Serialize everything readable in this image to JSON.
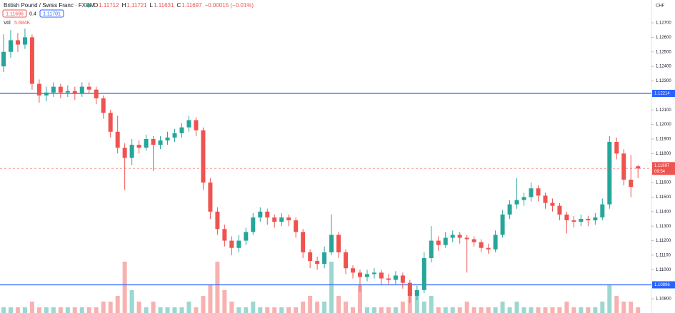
{
  "chart_data": {
    "type": "candlestick",
    "title": "British Pound / Swiss Franc · FXCM",
    "ohlc_labels": [
      "O",
      "H",
      "L",
      "C"
    ],
    "change": "−0.00015 (−0.01%)",
    "bid": "1.11696",
    "spread": "0.4",
    "ask": "1.11701",
    "volume_label": "Vol",
    "volume_value": "5.684K",
    "currency": "CHF",
    "countdown": "09:54",
    "up_color": "#26a69a",
    "down_color": "#ef5350",
    "ylim": [
      1.10702,
      1.12857
    ],
    "yticks": [
      {
        "value": 1.127,
        "label": "1.12700"
      },
      {
        "value": 1.126,
        "label": "1.12600"
      },
      {
        "value": 1.125,
        "label": "1.12500"
      },
      {
        "value": 1.124,
        "label": "1.12400"
      },
      {
        "value": 1.123,
        "label": "1.12300"
      },
      {
        "value": 1.121,
        "label": "1.12100"
      },
      {
        "value": 1.12,
        "label": "1.12000"
      },
      {
        "value": 1.119,
        "label": "1.11900"
      },
      {
        "value": 1.118,
        "label": "1.11800"
      },
      {
        "value": 1.116,
        "label": "1.11600"
      },
      {
        "value": 1.115,
        "label": "1.11500"
      },
      {
        "value": 1.114,
        "label": "1.11400"
      },
      {
        "value": 1.113,
        "label": "1.11300"
      },
      {
        "value": 1.112,
        "label": "1.11200"
      },
      {
        "value": 1.111,
        "label": "1.11100"
      },
      {
        "value": 1.11,
        "label": "1.11000"
      },
      {
        "value": 1.108,
        "label": "1.10800"
      }
    ],
    "grid": false,
    "hlines": [
      {
        "value": 1.12214,
        "label": "1.12214",
        "color": "#2962ff"
      },
      {
        "value": 1.10896,
        "label": "1.10896",
        "color": "#2962ff"
      }
    ],
    "candles": [
      [
        1.124,
        1.1262,
        1.1236,
        1.125
      ],
      [
        1.125,
        1.1265,
        1.1246,
        1.1258
      ],
      [
        1.1258,
        1.1263,
        1.125,
        1.1255
      ],
      [
        1.1255,
        1.1266,
        1.1252,
        1.126
      ],
      [
        1.126,
        1.1262,
        1.1224,
        1.1228
      ],
      [
        1.1228,
        1.1231,
        1.1215,
        1.122
      ],
      [
        1.122,
        1.1226,
        1.1216,
        1.1222
      ],
      [
        1.1222,
        1.1229,
        1.1219,
        1.1226
      ],
      [
        1.1226,
        1.1228,
        1.1218,
        1.1222
      ],
      [
        1.1222,
        1.1227,
        1.1219,
        1.1223
      ],
      [
        1.1223,
        1.1226,
        1.1217,
        1.1221
      ],
      [
        1.1221,
        1.1229,
        1.1219,
        1.1226
      ],
      [
        1.1226,
        1.1229,
        1.1221,
        1.1224
      ],
      [
        1.1224,
        1.1226,
        1.1214,
        1.1218
      ],
      [
        1.1218,
        1.122,
        1.1204,
        1.1208
      ],
      [
        1.1208,
        1.121,
        1.1191,
        1.1195
      ],
      [
        1.1195,
        1.1206,
        1.118,
        1.1184
      ],
      [
        1.1184,
        1.1187,
        1.1155,
        1.1177
      ],
      [
        1.1177,
        1.119,
        1.1172,
        1.1186
      ],
      [
        1.1186,
        1.1189,
        1.118,
        1.1184
      ],
      [
        1.1184,
        1.1193,
        1.1182,
        1.119
      ],
      [
        1.119,
        1.1192,
        1.1168,
        1.1186
      ],
      [
        1.1186,
        1.1192,
        1.1183,
        1.1189
      ],
      [
        1.1189,
        1.1195,
        1.1186,
        1.1191
      ],
      [
        1.1191,
        1.1197,
        1.1188,
        1.1194
      ],
      [
        1.1194,
        1.1201,
        1.1191,
        1.1198
      ],
      [
        1.1198,
        1.1206,
        1.1195,
        1.1203
      ],
      [
        1.1203,
        1.1205,
        1.1192,
        1.1196
      ],
      [
        1.1196,
        1.1198,
        1.1155,
        1.116
      ],
      [
        1.116,
        1.1163,
        1.1135,
        1.114
      ],
      [
        1.114,
        1.1143,
        1.1124,
        1.1128
      ],
      [
        1.1128,
        1.1131,
        1.1116,
        1.112
      ],
      [
        1.112,
        1.1123,
        1.111,
        1.1115
      ],
      [
        1.1115,
        1.1124,
        1.1112,
        1.112
      ],
      [
        1.112,
        1.1129,
        1.1117,
        1.1126
      ],
      [
        1.1126,
        1.1139,
        1.1124,
        1.1136
      ],
      [
        1.1136,
        1.1143,
        1.1133,
        1.114
      ],
      [
        1.114,
        1.1142,
        1.1131,
        1.1136
      ],
      [
        1.1136,
        1.1138,
        1.1129,
        1.1133
      ],
      [
        1.1133,
        1.1139,
        1.113,
        1.1136
      ],
      [
        1.1136,
        1.1138,
        1.113,
        1.1134
      ],
      [
        1.1134,
        1.1136,
        1.1122,
        1.1126
      ],
      [
        1.1126,
        1.1128,
        1.1108,
        1.1112
      ],
      [
        1.1112,
        1.1114,
        1.1101,
        1.1106
      ],
      [
        1.1106,
        1.1109,
        1.11,
        1.1104
      ],
      [
        1.1104,
        1.1116,
        1.1101,
        1.1112
      ],
      [
        1.1112,
        1.1138,
        1.111,
        1.1124
      ],
      [
        1.1124,
        1.1126,
        1.1108,
        1.1112
      ],
      [
        1.1112,
        1.1114,
        1.1097,
        1.1101
      ],
      [
        1.1101,
        1.1103,
        1.1094,
        1.1098
      ],
      [
        1.1098,
        1.11,
        1.1085,
        1.1095
      ],
      [
        1.1095,
        1.11,
        1.1092,
        1.1097
      ],
      [
        1.1097,
        1.1101,
        1.1094,
        1.1098
      ],
      [
        1.1098,
        1.11,
        1.109,
        1.1094
      ],
      [
        1.1094,
        1.1097,
        1.109,
        1.1093
      ],
      [
        1.1093,
        1.1099,
        1.109,
        1.1096
      ],
      [
        1.1096,
        1.1098,
        1.1087,
        1.1091
      ],
      [
        1.1091,
        1.1093,
        1.1077,
        1.1082
      ],
      [
        1.1082,
        1.1089,
        1.1079,
        1.1086
      ],
      [
        1.1086,
        1.1112,
        1.1084,
        1.1108
      ],
      [
        1.1108,
        1.113,
        1.1105,
        1.112
      ],
      [
        1.112,
        1.1123,
        1.1113,
        1.1117
      ],
      [
        1.1117,
        1.1126,
        1.1115,
        1.1122
      ],
      [
        1.1122,
        1.1127,
        1.1119,
        1.1124
      ],
      [
        1.1124,
        1.1126,
        1.1118,
        1.1122
      ],
      [
        1.1122,
        1.1124,
        1.1098,
        1.1121
      ],
      [
        1.1121,
        1.1123,
        1.1116,
        1.1119
      ],
      [
        1.1119,
        1.1121,
        1.1112,
        1.1115
      ],
      [
        1.1115,
        1.1118,
        1.1111,
        1.1114
      ],
      [
        1.1114,
        1.1127,
        1.1112,
        1.1124
      ],
      [
        1.1124,
        1.1141,
        1.1122,
        1.1138
      ],
      [
        1.1138,
        1.1148,
        1.1135,
        1.1145
      ],
      [
        1.1145,
        1.1163,
        1.1142,
        1.1148
      ],
      [
        1.1148,
        1.1153,
        1.1144,
        1.115
      ],
      [
        1.115,
        1.116,
        1.1147,
        1.1156
      ],
      [
        1.1156,
        1.1158,
        1.1147,
        1.1151
      ],
      [
        1.1151,
        1.1153,
        1.1142,
        1.1146
      ],
      [
        1.1146,
        1.1149,
        1.114,
        1.1144
      ],
      [
        1.1144,
        1.1146,
        1.1134,
        1.1138
      ],
      [
        1.1138,
        1.114,
        1.1125,
        1.1134
      ],
      [
        1.1134,
        1.1137,
        1.1129,
        1.1133
      ],
      [
        1.1133,
        1.1138,
        1.113,
        1.1135
      ],
      [
        1.1135,
        1.1137,
        1.113,
        1.1134
      ],
      [
        1.1134,
        1.1139,
        1.1131,
        1.1136
      ],
      [
        1.1136,
        1.1149,
        1.1134,
        1.1145
      ],
      [
        1.1145,
        1.1192,
        1.1142,
        1.1188
      ],
      [
        1.1188,
        1.1191,
        1.1176,
        1.118
      ],
      [
        1.118,
        1.1183,
        1.1158,
        1.1162
      ],
      [
        1.1162,
        1.1179,
        1.115,
        1.1157
      ],
      [
        1.11712,
        1.11721,
        1.11631,
        1.11697
      ]
    ],
    "volume": [
      1,
      1,
      1,
      1,
      2,
      1,
      1,
      1,
      1,
      1,
      1,
      1,
      1,
      1,
      2,
      2,
      3,
      9,
      4,
      2,
      1,
      2,
      1,
      1,
      1,
      1,
      2,
      1,
      3,
      5,
      9,
      4,
      2,
      1,
      1,
      2,
      1,
      1,
      1,
      1,
      1,
      1,
      2,
      3,
      2,
      2,
      9,
      3,
      2,
      1,
      5,
      1,
      1,
      1,
      1,
      1,
      2,
      5,
      3,
      2,
      3,
      1,
      1,
      1,
      1,
      2,
      1,
      1,
      1,
      1,
      2,
      1,
      2,
      1,
      1,
      1,
      1,
      1,
      1,
      2,
      1,
      1,
      1,
      1,
      2,
      5,
      3,
      2,
      2,
      1
    ]
  }
}
